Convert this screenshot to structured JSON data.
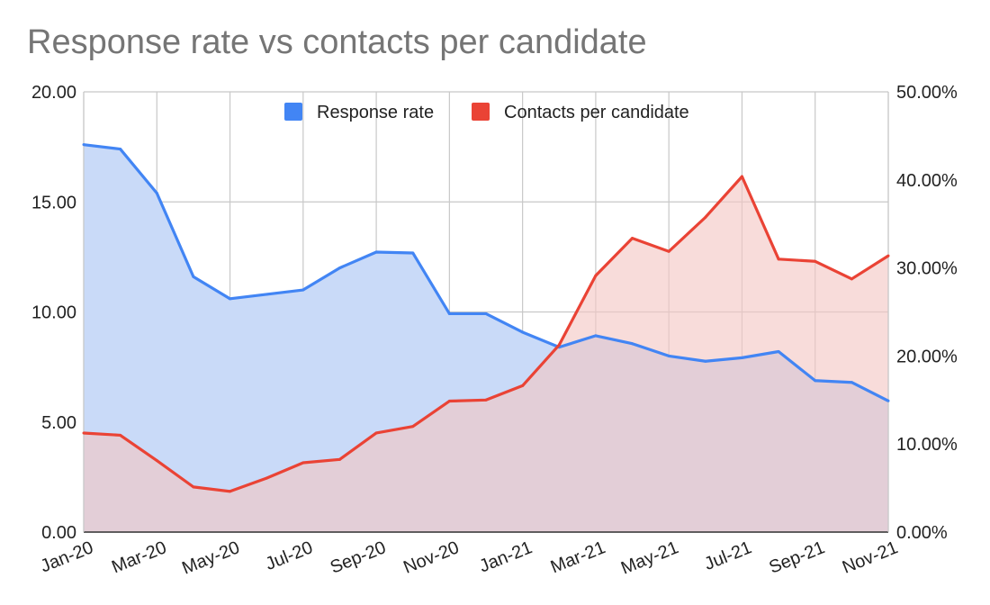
{
  "chart_data": {
    "type": "area",
    "title": "Response rate vs contacts per candidate",
    "xlabel": "",
    "ylabel": "",
    "legend_position": "top",
    "grid": true,
    "x": [
      "Jan-20",
      "Feb-20",
      "Mar-20",
      "Apr-20",
      "May-20",
      "Jun-20",
      "Jul-20",
      "Aug-20",
      "Sep-20",
      "Oct-20",
      "Nov-20",
      "Dec-20",
      "Jan-21",
      "Feb-21",
      "Mar-21",
      "Apr-21",
      "May-21",
      "Jun-21",
      "Jul-21",
      "Aug-21",
      "Sep-21",
      "Oct-21",
      "Nov-21"
    ],
    "x_tick_labels": [
      "Jan-20",
      "Mar-20",
      "May-20",
      "Jul-20",
      "Sep-20",
      "Nov-20",
      "Jan-21",
      "Mar-21",
      "May-21",
      "Jul-21",
      "Sep-21",
      "Nov-21"
    ],
    "y_left": {
      "ticks": [
        "0.00",
        "5.00",
        "10.00",
        "15.00",
        "20.00"
      ],
      "ylim": [
        0,
        20
      ]
    },
    "y_right": {
      "ticks": [
        "0.00%",
        "10.00%",
        "20.00%",
        "30.00%",
        "40.00%",
        "50.00%"
      ],
      "ylim": [
        0,
        50
      ]
    },
    "series": [
      {
        "name": "Response rate",
        "axis": "right",
        "color": "#4285f4",
        "fill": "#c9daf8",
        "values": [
          44.0,
          43.5,
          38.5,
          29.0,
          26.5,
          27.0,
          27.5,
          30.0,
          31.8,
          31.7,
          24.8,
          24.8,
          22.7,
          21.0,
          22.3,
          21.4,
          20.0,
          19.4,
          19.8,
          20.5,
          17.2,
          17.0,
          14.9
        ]
      },
      {
        "name": "Contacts per candidate",
        "axis": "left",
        "color": "#ea4335",
        "fill": "#f4c7c3",
        "values": [
          4.5,
          4.4,
          3.25,
          2.05,
          1.85,
          2.45,
          3.15,
          3.3,
          4.5,
          4.8,
          5.95,
          6.0,
          6.65,
          8.5,
          11.65,
          13.35,
          12.75,
          14.3,
          16.15,
          12.4,
          12.3,
          11.5,
          12.55
        ]
      }
    ]
  }
}
